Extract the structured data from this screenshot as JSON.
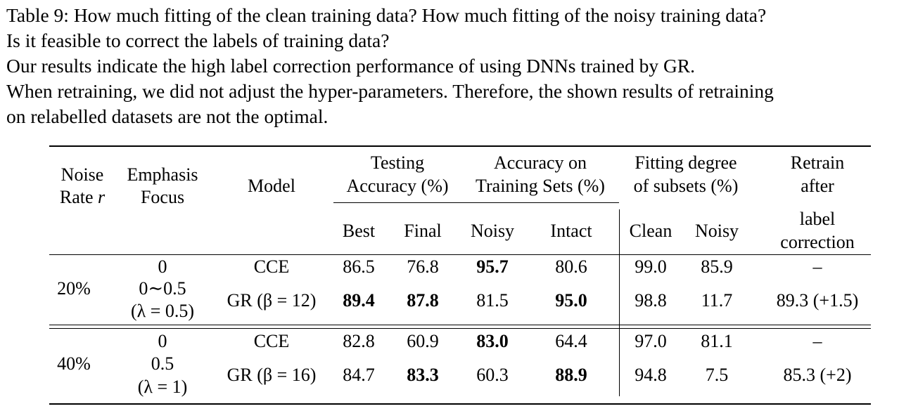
{
  "caption": {
    "line1": "Table 9: How much fitting of the clean training data? How much fitting of the noisy training data?",
    "line2": "Is it feasible to correct the labels of training data?",
    "line3": "Our results indicate the high label correction performance of using DNNs trained by GR.",
    "line4": "When retraining, we did not adjust the hyper-parameters. Therefore, the shown results of retraining",
    "line5": "on relabelled datasets are not the optimal."
  },
  "header": {
    "noise_rate_1": "Noise",
    "noise_rate_2a": "Rate ",
    "noise_rate_2b": "r",
    "emphasis_1": "Emphasis",
    "emphasis_2": "Focus",
    "model": "Model",
    "testing_1": "Testing",
    "testing_2": "Accuracy (%)",
    "acc_train_1": "Accuracy on",
    "acc_train_2": "Training Sets (%)",
    "fitting_1": "Fitting degree",
    "fitting_2": "of subsets (%)",
    "retrain_1": "Retrain",
    "retrain_2": "after",
    "retrain_3": "label",
    "retrain_4": "correction",
    "best": "Best",
    "final": "Final",
    "noisy": "Noisy",
    "intact": "Intact",
    "clean": "Clean",
    "noisy2": "Noisy"
  },
  "group20": {
    "noise_rate": "20%",
    "row1": {
      "emphasis": "0",
      "model": "CCE",
      "best": "86.5",
      "final": "76.8",
      "noisy": "95.7",
      "intact": "80.6",
      "clean": "99.0",
      "noisy2": "85.9",
      "retrain": "–"
    },
    "row2": {
      "emphasis_1": "0∼0.5",
      "emphasis_2": "(λ = 0.5)",
      "model": "GR (β = 12)",
      "best": "89.4",
      "final": "87.8",
      "noisy": "81.5",
      "intact": "95.0",
      "clean": "98.8",
      "noisy2": "11.7",
      "retrain": "89.3 (+1.5)"
    }
  },
  "group40": {
    "noise_rate": "40%",
    "row1": {
      "emphasis": "0",
      "model": "CCE",
      "best": "82.8",
      "final": "60.9",
      "noisy": "83.0",
      "intact": "64.4",
      "clean": "97.0",
      "noisy2": "81.1",
      "retrain": "–"
    },
    "row2": {
      "emphasis_1": "0.5",
      "emphasis_2": "(λ = 1)",
      "model": "GR (β = 16)",
      "best": "84.7",
      "final": "83.3",
      "noisy": "60.3",
      "intact": "88.9",
      "clean": "94.8",
      "noisy2": "7.5",
      "retrain": "85.3 (+2)"
    }
  }
}
